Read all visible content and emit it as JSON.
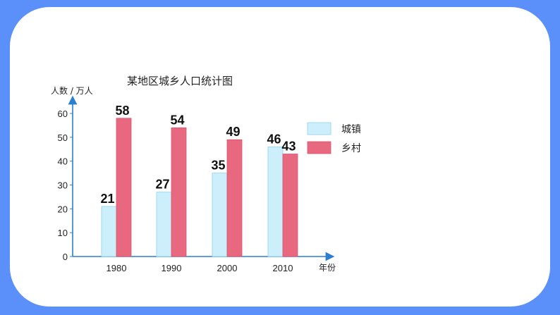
{
  "chart_data": {
    "type": "bar",
    "title": "某地区城乡人口统计图",
    "ylabel": "人数 / 万人",
    "xlabel": "年份",
    "categories": [
      "1980",
      "1990",
      "2000",
      "2010"
    ],
    "yticks": [
      0,
      10,
      20,
      30,
      40,
      50,
      60
    ],
    "ylim": [
      0,
      60
    ],
    "legend_position": "right",
    "series": [
      {
        "name": "城镇",
        "values": [
          21,
          27,
          35,
          46
        ],
        "color": "#cdeefb",
        "stroke": "#8fd3ee"
      },
      {
        "name": "乡村",
        "values": [
          58,
          54,
          49,
          43
        ],
        "color": "#e8687f",
        "stroke": "#d9556d"
      }
    ]
  }
}
